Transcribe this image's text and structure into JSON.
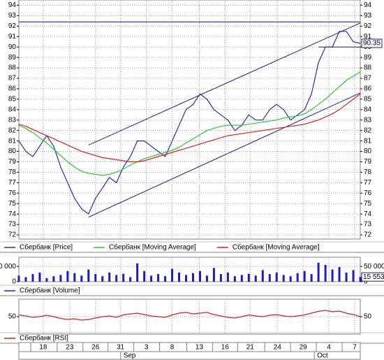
{
  "chart_data": [
    {
      "type": "line",
      "ylim": [
        71.6,
        94.5
      ],
      "yticks": [
        72,
        73,
        74,
        75,
        76,
        77,
        78,
        79,
        80,
        81,
        82,
        83,
        84,
        85,
        86,
        87,
        88,
        89,
        90,
        91,
        92,
        93,
        94
      ],
      "grid": true,
      "series": [
        {
          "name": "Сбербанк [Price]",
          "color": "#2a2aa8",
          "values": [
            81,
            80,
            79.5,
            80.5,
            81.5,
            80.5,
            78.5,
            77,
            75.5,
            74.5,
            74,
            75.5,
            76.5,
            77.5,
            77,
            78.5,
            79.5,
            81,
            81,
            80.5,
            80,
            79.5,
            81,
            82.5,
            84,
            84.5,
            85.5,
            85,
            84,
            83.5,
            83,
            82,
            82.5,
            83.5,
            83,
            83,
            84,
            84.5,
            84,
            83,
            83.5,
            84,
            85.5,
            88.5,
            90,
            90,
            91.5,
            91.5,
            90.5,
            90.35
          ]
        },
        {
          "name": "Сбербанк [Moving Average]",
          "color": "#2ec42e",
          "values": [
            82.5,
            82.2,
            81.8,
            81.3,
            80.8,
            80.2,
            79.6,
            79,
            78.5,
            78.1,
            77.9,
            77.8,
            77.7,
            77.8,
            78,
            78.3,
            78.7,
            79,
            79.3,
            79.5,
            79.7,
            79.9,
            80.1,
            80.4,
            80.8,
            81.2,
            81.6,
            82,
            82.2,
            82.4,
            82.5,
            82.5,
            82.5,
            82.6,
            82.7,
            82.8,
            82.9,
            83,
            83.2,
            83.3,
            83.4,
            83.6,
            84,
            84.5,
            85,
            85.6,
            86.2,
            86.8,
            87.2,
            87.6
          ]
        },
        {
          "name": "Сбербанк [Moving Average]",
          "color": "#cc2222",
          "values": [
            82.6,
            82.4,
            82.1,
            81.8,
            81.5,
            81.2,
            80.9,
            80.6,
            80.3,
            80,
            79.8,
            79.6,
            79.4,
            79.3,
            79.2,
            79.1,
            79,
            79,
            79.1,
            79.3,
            79.5,
            79.7,
            79.9,
            80.1,
            80.3,
            80.5,
            80.7,
            80.9,
            81.1,
            81.3,
            81.5,
            81.6,
            81.7,
            81.8,
            81.9,
            82,
            82.1,
            82.2,
            82.3,
            82.4,
            82.5,
            82.6,
            82.8,
            83,
            83.3,
            83.6,
            84,
            84.5,
            85,
            85.5
          ]
        }
      ],
      "trendlines": [
        [
          [
            10,
            80.6
          ],
          [
            49,
            92.3
          ]
        ],
        [
          [
            10,
            73.7
          ],
          [
            49,
            85.6
          ]
        ],
        [
          [
            0,
            92.4
          ],
          [
            49,
            92.4
          ]
        ],
        [
          [
            43,
            90
          ],
          [
            49,
            90
          ]
        ]
      ],
      "last_value_label": "90.35"
    },
    {
      "type": "bar",
      "ylim": [
        0,
        80000
      ],
      "yticks": [
        0,
        {
          "value": 50000,
          "label": "50 000"
        }
      ],
      "grid": true,
      "series": [
        {
          "name": "Сбербанк [Volume]",
          "color": "#1c1cc8",
          "values": [
            20000,
            15000,
            25000,
            30000,
            12000,
            18000,
            22000,
            35000,
            28000,
            20000,
            40000,
            25000,
            18000,
            30000,
            22000,
            26000,
            15000,
            60000,
            35000,
            20000,
            25000,
            18000,
            42000,
            30000,
            22000,
            28000,
            35000,
            20000,
            45000,
            25000,
            30000,
            18000,
            22000,
            26000,
            20000,
            38000,
            25000,
            30000,
            22000,
            18000,
            28000,
            35000,
            25000,
            62000,
            55000,
            40000,
            48000,
            30000,
            38000,
            15553
          ]
        }
      ],
      "last_value_label": "15 553"
    },
    {
      "type": "line",
      "ylim": [
        0,
        100
      ],
      "yticks": [
        50
      ],
      "grid": true,
      "series": [
        {
          "name": "Сбербанк [RSI]",
          "color": "#cc2222",
          "values": [
            55,
            52,
            48,
            50,
            54,
            50,
            45,
            42,
            44,
            40,
            42,
            46,
            50,
            52,
            48,
            55,
            58,
            60,
            56,
            52,
            50,
            48,
            55,
            60,
            62,
            58,
            60,
            62,
            56,
            52,
            48,
            46,
            50,
            55,
            52,
            50,
            54,
            56,
            52,
            50,
            52,
            55,
            60,
            65,
            68,
            64,
            66,
            60,
            56,
            50
          ]
        }
      ],
      "xlim": [
        0,
        49
      ],
      "xticks": [
        {
          "value": 3.5,
          "label": "18"
        },
        {
          "value": 7.3,
          "label": "23"
        },
        {
          "value": 11,
          "label": "26"
        },
        {
          "value": 14.6,
          "label": "31"
        },
        {
          "value": 18.3,
          "label": "3"
        },
        {
          "value": 22,
          "label": "8"
        },
        {
          "value": 25.9,
          "label": "13"
        },
        {
          "value": 29.6,
          "label": "16"
        },
        {
          "value": 33.2,
          "label": "21"
        },
        {
          "value": 37.1,
          "label": "24"
        },
        {
          "value": 40.8,
          "label": "29"
        },
        {
          "value": 44.5,
          "label": "4"
        },
        {
          "value": 48.2,
          "label": "7"
        }
      ],
      "month_labels": [
        {
          "value": 15,
          "label": "Sep"
        },
        {
          "value": 42.8,
          "label": "Oct"
        }
      ]
    }
  ]
}
